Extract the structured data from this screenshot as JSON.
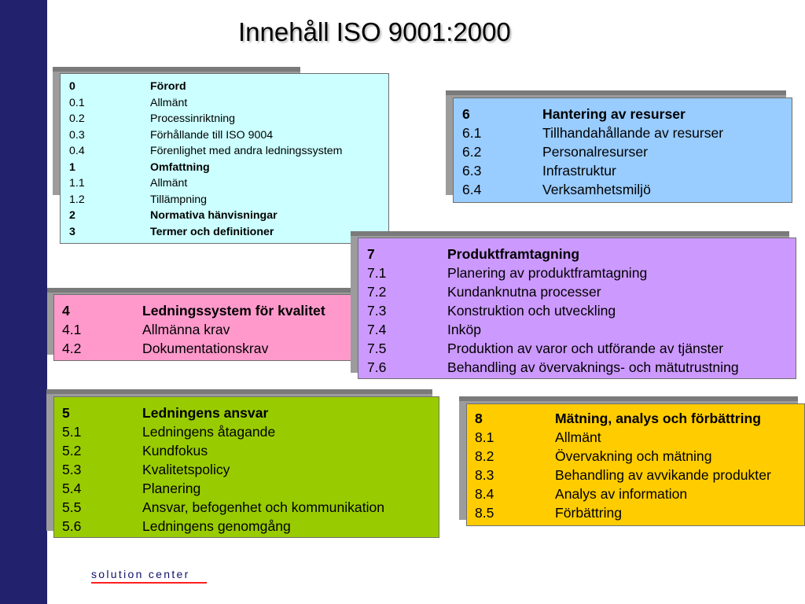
{
  "title": "Innehåll ISO 9001:2000",
  "footer": "solution center",
  "colors": {
    "sidebar": "#21216e",
    "box0": "#ccffff",
    "box6": "#99ccff",
    "box7": "#cc99ff",
    "box4": "#ff99cc",
    "box5": "#99cc00",
    "box8": "#ffcc00"
  },
  "boxes": {
    "b0": [
      {
        "num": "0",
        "text": "Förord",
        "bold": true
      },
      {
        "num": "0.1",
        "text": "Allmänt"
      },
      {
        "num": "0.2",
        "text": "Processinriktning"
      },
      {
        "num": "0.3",
        "text": "Förhållande till ISO 9004"
      },
      {
        "num": "0.4",
        "text": "Förenlighet med andra ledningssystem"
      },
      {
        "num": "1",
        "text": "Omfattning",
        "bold": true
      },
      {
        "num": "1.1",
        "text": "Allmänt"
      },
      {
        "num": "1.2",
        "text": "Tillämpning"
      },
      {
        "num": "2",
        "text": "Normativa hänvisningar",
        "bold": true
      },
      {
        "num": "3",
        "text": "Termer och definitioner",
        "bold": true
      }
    ],
    "b6": [
      {
        "num": "6",
        "text": "Hantering av resurser",
        "bold": true
      },
      {
        "num": "6.1",
        "text": "Tillhandahållande av resurser"
      },
      {
        "num": "6.2",
        "text": "Personalresurser"
      },
      {
        "num": "6.3",
        "text": "Infrastruktur"
      },
      {
        "num": "6.4",
        "text": "Verksamhetsmiljö"
      }
    ],
    "b7": [
      {
        "num": "7",
        "text": "Produktframtagning",
        "bold": true
      },
      {
        "num": "7.1",
        "text": "Planering av produktframtagning"
      },
      {
        "num": "7.2",
        "text": "Kundanknutna processer"
      },
      {
        "num": "7.3",
        "text": "Konstruktion och utveckling"
      },
      {
        "num": "7.4",
        "text": "Inköp"
      },
      {
        "num": "7.5",
        "text": "Produktion av varor och utförande av tjänster"
      },
      {
        "num": "7.6",
        "text": "Behandling av övervaknings- och mätutrustning"
      }
    ],
    "b4": [
      {
        "num": "4",
        "text": "Ledningssystem för kvalitet",
        "bold": true
      },
      {
        "num": "4.1",
        "text": "Allmänna krav"
      },
      {
        "num": "4.2",
        "text": "Dokumentationskrav"
      }
    ],
    "b5": [
      {
        "num": "5",
        "text": "Ledningens ansvar",
        "bold": true
      },
      {
        "num": "5.1",
        "text": "Ledningens åtagande"
      },
      {
        "num": "5.2",
        "text": "Kundfokus"
      },
      {
        "num": "5.3",
        "text": "Kvalitetspolicy"
      },
      {
        "num": "5.4",
        "text": "Planering"
      },
      {
        "num": "5.5",
        "text": "Ansvar, befogenhet och kommunikation"
      },
      {
        "num": "5.6",
        "text": "Ledningens genomgång"
      }
    ],
    "b8": [
      {
        "num": "8",
        "text": "Mätning, analys och förbättring",
        "bold": true
      },
      {
        "num": "8.1",
        "text": "Allmänt"
      },
      {
        "num": "8.2",
        "text": "Övervakning och mätning"
      },
      {
        "num": "8.3",
        "text": "Behandling av avvikande produkter"
      },
      {
        "num": "8.4",
        "text": "Analys av information"
      },
      {
        "num": "8.5",
        "text": "Förbättring"
      }
    ]
  }
}
